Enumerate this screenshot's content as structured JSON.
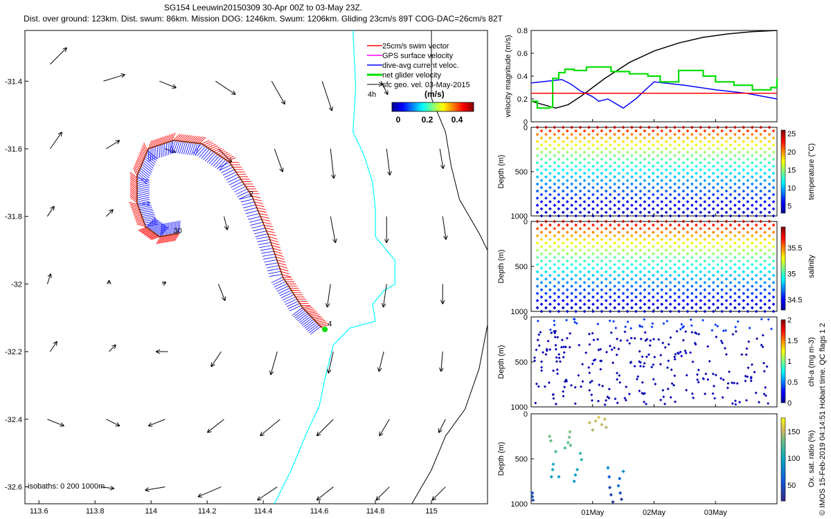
{
  "header": {
    "title": "SG154 Leeuwin20150309 30-Apr 00Z to 03-May 23Z.",
    "subtitle": "Dist. over ground: 123km. Dist. swum: 86km. Mission DOG: 1246km. Swum: 1206km. Gliding 23cm/s 89T COG-DAC=26cm/s 82T"
  },
  "stamp": "© IMOS 15-Feb-2019 04:14:51 Hobart time. QC flags 1  2",
  "colors": {
    "swim": "#ff0000",
    "gps": "#ff00ff",
    "dac": "#0000ff",
    "net": "#00dd00",
    "geo": "#000000",
    "isobath0": "#00ffff",
    "isobath1000": "#000000",
    "track": "#8b2500"
  },
  "chart_data": [
    {
      "type": "map",
      "xlim": [
        113.55,
        115.2
      ],
      "ylim": [
        -32.65,
        -31.25
      ],
      "x_ticks": [
        "113.6",
        "113.8",
        "114",
        "114.2",
        "114.4",
        "114.6",
        "114.8",
        "115"
      ],
      "x_tick_values": [
        113.6,
        113.8,
        114.0,
        114.2,
        114.4,
        114.6,
        114.8,
        115.0
      ],
      "y_ticks": [
        "-31.4",
        "-31.6",
        "-31.8",
        "-32",
        "-32.2",
        "-32.4",
        "-32.6"
      ],
      "y_tick_values": [
        -31.4,
        -31.6,
        -31.8,
        -32.0,
        -32.2,
        -32.4,
        -32.6
      ],
      "legend": {
        "placement": "top-right",
        "entries": [
          "25cm/s swim vector",
          "GPS surface velocity",
          "dive-avg current veloc.",
          "net glider velocity",
          "sfc geo. vel. 03-May-2015"
        ]
      },
      "colorbar": {
        "label": "(m/s)",
        "ticks": [
          "0",
          "0.2",
          "0.4"
        ],
        "range": [
          0,
          0.5
        ]
      },
      "isobath_note": "isobaths: 0   200  1000m",
      "scale_label": "4h",
      "track_labels": [
        {
          "text": "30",
          "lon": 114.08,
          "lat": -31.85
        },
        {
          "text": "2",
          "lon": 114.35,
          "lat": -31.74
        },
        {
          "text": "4",
          "lon": 114.63,
          "lat": -32.125
        }
      ],
      "track": [
        {
          "lon": 114.1,
          "lat": -31.85
        },
        {
          "lon": 114.03,
          "lat": -31.86
        },
        {
          "lon": 113.98,
          "lat": -31.83
        },
        {
          "lon": 113.95,
          "lat": -31.76
        },
        {
          "lon": 113.95,
          "lat": -31.68
        },
        {
          "lon": 113.99,
          "lat": -31.6
        },
        {
          "lon": 114.08,
          "lat": -31.575
        },
        {
          "lon": 114.18,
          "lat": -31.585
        },
        {
          "lon": 114.28,
          "lat": -31.64
        },
        {
          "lon": 114.36,
          "lat": -31.74
        },
        {
          "lon": 114.42,
          "lat": -31.86
        },
        {
          "lon": 114.47,
          "lat": -31.98
        },
        {
          "lon": 114.54,
          "lat": -32.07
        },
        {
          "lon": 114.61,
          "lat": -32.13
        }
      ],
      "geo_arrows": [
        {
          "lon": 113.64,
          "lat": -31.35,
          "u": 0.05,
          "v": 0.05
        },
        {
          "lon": 113.83,
          "lat": -31.4,
          "u": 0.065,
          "v": 0.02
        },
        {
          "lon": 114.03,
          "lat": -31.4,
          "u": 0.05,
          "v": -0.02
        },
        {
          "lon": 114.23,
          "lat": -31.4,
          "u": 0.06,
          "v": -0.04
        },
        {
          "lon": 114.43,
          "lat": -31.4,
          "u": 0.04,
          "v": -0.07
        },
        {
          "lon": 114.61,
          "lat": -31.4,
          "u": 0.03,
          "v": -0.09
        },
        {
          "lon": 114.82,
          "lat": -31.4,
          "u": 0.02,
          "v": -0.04
        },
        {
          "lon": 113.64,
          "lat": -31.6,
          "u": 0.035,
          "v": 0.05
        },
        {
          "lon": 113.84,
          "lat": -31.6,
          "u": 0.04,
          "v": 0.025
        },
        {
          "lon": 114.05,
          "lat": -31.6,
          "u": 0.03,
          "v": -0.01
        },
        {
          "lon": 114.24,
          "lat": -31.6,
          "u": 0.04,
          "v": -0.04
        },
        {
          "lon": 114.44,
          "lat": -31.6,
          "u": 0.025,
          "v": -0.07
        },
        {
          "lon": 114.64,
          "lat": -31.6,
          "u": 0.01,
          "v": -0.09
        },
        {
          "lon": 114.84,
          "lat": -31.6,
          "u": 0.01,
          "v": -0.08
        },
        {
          "lon": 115.03,
          "lat": -31.6,
          "u": 0.01,
          "v": -0.06
        },
        {
          "lon": 113.63,
          "lat": -31.8,
          "u": 0.02,
          "v": 0.03
        },
        {
          "lon": 113.84,
          "lat": -31.8,
          "u": 0.02,
          "v": 0.02
        },
        {
          "lon": 114.26,
          "lat": -31.8,
          "u": 0.01,
          "v": -0.04
        },
        {
          "lon": 114.64,
          "lat": -31.8,
          "u": 0.015,
          "v": -0.08
        },
        {
          "lon": 114.84,
          "lat": -31.8,
          "u": 0.0,
          "v": -0.08
        },
        {
          "lon": 115.04,
          "lat": -31.8,
          "u": 0.01,
          "v": -0.07
        },
        {
          "lon": 113.63,
          "lat": -32.0,
          "u": 0.01,
          "v": 0.03
        },
        {
          "lon": 113.85,
          "lat": -32.0,
          "u": 0.0,
          "v": 0.01
        },
        {
          "lon": 114.04,
          "lat": -32.0,
          "u": 0.01,
          "v": 0.005
        },
        {
          "lon": 114.24,
          "lat": -32.0,
          "u": 0.02,
          "v": -0.05
        },
        {
          "lon": 114.64,
          "lat": -32.0,
          "u": -0.01,
          "v": -0.07
        },
        {
          "lon": 114.84,
          "lat": -32.0,
          "u": -0.01,
          "v": -0.07
        },
        {
          "lon": 115.04,
          "lat": -32.0,
          "u": 0.0,
          "v": -0.06
        },
        {
          "lon": 113.64,
          "lat": -32.2,
          "u": 0.02,
          "v": 0.03
        },
        {
          "lon": 113.85,
          "lat": -32.2,
          "u": 0.02,
          "v": 0.02
        },
        {
          "lon": 114.06,
          "lat": -32.2,
          "u": -0.035,
          "v": 0.0
        },
        {
          "lon": 114.25,
          "lat": -32.2,
          "u": -0.03,
          "v": -0.045
        },
        {
          "lon": 114.45,
          "lat": -32.2,
          "u": -0.02,
          "v": -0.07
        },
        {
          "lon": 114.65,
          "lat": -32.2,
          "u": -0.015,
          "v": -0.065
        },
        {
          "lon": 114.83,
          "lat": -32.2,
          "u": -0.015,
          "v": -0.06
        },
        {
          "lon": 115.04,
          "lat": -32.2,
          "u": -0.005,
          "v": -0.06
        },
        {
          "lon": 113.63,
          "lat": -32.4,
          "u": 0.05,
          "v": -0.02
        },
        {
          "lon": 113.84,
          "lat": -32.4,
          "u": 0.04,
          "v": -0.02
        },
        {
          "lon": 114.05,
          "lat": -32.4,
          "u": -0.05,
          "v": -0.02
        },
        {
          "lon": 114.26,
          "lat": -32.4,
          "u": -0.05,
          "v": -0.04
        },
        {
          "lon": 114.46,
          "lat": -32.4,
          "u": -0.06,
          "v": -0.05
        },
        {
          "lon": 114.65,
          "lat": -32.4,
          "u": -0.05,
          "v": -0.05
        },
        {
          "lon": 114.85,
          "lat": -32.4,
          "u": -0.03,
          "v": -0.05
        },
        {
          "lon": 115.05,
          "lat": -32.4,
          "u": -0.02,
          "v": -0.04
        },
        {
          "lon": 113.82,
          "lat": -32.6,
          "u": 0.04,
          "v": -0.005
        },
        {
          "lon": 114.05,
          "lat": -32.6,
          "u": -0.06,
          "v": -0.01
        },
        {
          "lon": 114.25,
          "lat": -32.6,
          "u": -0.07,
          "v": -0.03
        },
        {
          "lon": 114.45,
          "lat": -32.6,
          "u": -0.06,
          "v": -0.04
        },
        {
          "lon": 114.65,
          "lat": -32.6,
          "u": -0.05,
          "v": -0.04
        },
        {
          "lon": 114.85,
          "lat": -32.6,
          "u": -0.04,
          "v": -0.04
        },
        {
          "lon": 115.05,
          "lat": -32.6,
          "u": -0.04,
          "v": -0.04
        }
      ],
      "isobath_200": [
        {
          "lon": 114.72,
          "lat": -31.25
        },
        {
          "lon": 114.73,
          "lat": -31.42
        },
        {
          "lon": 114.72,
          "lat": -31.55
        },
        {
          "lon": 114.76,
          "lat": -31.62
        },
        {
          "lon": 114.79,
          "lat": -31.7
        },
        {
          "lon": 114.8,
          "lat": -31.78
        },
        {
          "lon": 114.8,
          "lat": -31.86
        },
        {
          "lon": 114.87,
          "lat": -31.93
        },
        {
          "lon": 114.87,
          "lat": -32.0
        },
        {
          "lon": 114.83,
          "lat": -32.02
        },
        {
          "lon": 114.79,
          "lat": -32.06
        },
        {
          "lon": 114.8,
          "lat": -32.11
        },
        {
          "lon": 114.71,
          "lat": -32.13
        },
        {
          "lon": 114.65,
          "lat": -32.18
        },
        {
          "lon": 114.62,
          "lat": -32.28
        },
        {
          "lon": 114.6,
          "lat": -32.36
        },
        {
          "lon": 114.55,
          "lat": -32.45
        },
        {
          "lon": 114.5,
          "lat": -32.55
        },
        {
          "lon": 114.44,
          "lat": -32.65
        }
      ],
      "isobath_1000": [
        {
          "lon": 115.0,
          "lat": -31.25
        },
        {
          "lon": 115.0,
          "lat": -31.45
        },
        {
          "lon": 115.05,
          "lat": -31.55
        },
        {
          "lon": 115.07,
          "lat": -31.65
        },
        {
          "lon": 115.1,
          "lat": -31.75
        },
        {
          "lon": 115.17,
          "lat": -31.85
        },
        {
          "lon": 115.2,
          "lat": -31.9
        }
      ],
      "isobath_1000_b": [
        {
          "lon": 115.2,
          "lat": -32.12
        },
        {
          "lon": 115.17,
          "lat": -32.25
        },
        {
          "lon": 115.12,
          "lat": -32.37
        },
        {
          "lon": 115.05,
          "lat": -32.45
        },
        {
          "lon": 115.0,
          "lat": -32.55
        },
        {
          "lon": 114.93,
          "lat": -32.65
        }
      ]
    },
    {
      "type": "line",
      "ylabel": "velocity magnitude (m/s)",
      "ylim": [
        0,
        0.8
      ],
      "y_ticks": [
        "0",
        "0.2",
        "0.4",
        "0.6",
        "0.8"
      ],
      "xlim": [
        0,
        4
      ],
      "series": [
        {
          "color": "#000000",
          "x": [
            0,
            0.2,
            0.4,
            0.6,
            0.8,
            1.0,
            1.2,
            1.4,
            1.6,
            2.0,
            2.4,
            2.8,
            3.2,
            3.6,
            4.0
          ],
          "y": [
            0.18,
            0.15,
            0.12,
            0.15,
            0.22,
            0.3,
            0.38,
            0.45,
            0.52,
            0.62,
            0.69,
            0.74,
            0.77,
            0.79,
            0.8
          ]
        },
        {
          "color": "#0000ff",
          "x": [
            0,
            0.5,
            0.65,
            0.8,
            1.0,
            1.1,
            1.25,
            1.5,
            1.7,
            2.0,
            2.5,
            3.0,
            3.5,
            4.0
          ],
          "y": [
            0.34,
            0.37,
            0.33,
            0.27,
            0.22,
            0.18,
            0.2,
            0.12,
            0.2,
            0.35,
            0.32,
            0.28,
            0.25,
            0.2
          ]
        },
        {
          "color": "#00dd00",
          "x": [
            0,
            0.1,
            0.3,
            0.35,
            0.45,
            0.55,
            0.7,
            0.9,
            1.1,
            1.3,
            1.6,
            1.9,
            2.1,
            2.4,
            2.8,
            3.0,
            3.3,
            3.6,
            3.9,
            4.0
          ],
          "y": [
            0.18,
            0.12,
            0.13,
            0.38,
            0.43,
            0.46,
            0.45,
            0.48,
            0.48,
            0.44,
            0.42,
            0.4,
            0.35,
            0.45,
            0.4,
            0.35,
            0.32,
            0.28,
            0.3,
            0.38
          ]
        },
        {
          "color": "#ff0000",
          "x": [
            0,
            4
          ],
          "y": [
            0.25,
            0.25
          ]
        }
      ]
    },
    {
      "type": "scatter",
      "ylabel": "Depth (m)",
      "ylim": [
        1000,
        0
      ],
      "y_ticks": [
        "0",
        "500",
        "1000"
      ],
      "colorbar": {
        "label": "temperature (°C)",
        "ticks": [
          "5",
          "10",
          "15",
          "20",
          "25"
        ],
        "range": [
          3,
          26
        ]
      },
      "profile": "temperature",
      "dives": 28
    },
    {
      "type": "scatter",
      "ylabel": "Depth (m)",
      "ylim": [
        1000,
        0
      ],
      "y_ticks": [
        "0",
        "500",
        "1000"
      ],
      "colorbar": {
        "label": "salinity",
        "ticks": [
          "34.5",
          "35",
          "35.5"
        ],
        "range": [
          34.3,
          35.9
        ]
      },
      "profile": "salinity",
      "dives": 28
    },
    {
      "type": "scatter",
      "ylabel": "Depth (m)",
      "ylim": [
        1000,
        0
      ],
      "y_ticks": [
        "0",
        "500",
        "1000"
      ],
      "colorbar": {
        "label": "chl-a (mg m-3)",
        "ticks": [
          "0",
          "0.5",
          "1",
          "1.5",
          "2"
        ],
        "range": [
          0,
          2
        ]
      },
      "profile": "chl",
      "dives": 28
    },
    {
      "type": "scatter",
      "ylabel": "Depth (m)",
      "ylim": [
        1000,
        0
      ],
      "y_ticks": [
        "0",
        "500",
        "1000"
      ],
      "colorbar": {
        "label": "Ox. sat. ratio (%)",
        "ticks": [
          "50",
          "100",
          "150"
        ],
        "range": [
          20,
          175
        ]
      },
      "profile": "oxygen",
      "x_ticks": [
        "01May",
        "02May",
        "03May"
      ],
      "x_tick_values": [
        1,
        2,
        3
      ],
      "xlim": [
        0,
        4
      ],
      "points": [
        {
          "x": 0.02,
          "y": 920,
          "c": 40
        },
        {
          "x": 0.03,
          "y": 960,
          "c": 40
        },
        {
          "x": 0.02,
          "y": 880,
          "c": 45
        },
        {
          "x": 0.3,
          "y": 250,
          "c": 120
        },
        {
          "x": 0.32,
          "y": 300,
          "c": 115
        },
        {
          "x": 0.33,
          "y": 700,
          "c": 80
        },
        {
          "x": 0.35,
          "y": 620,
          "c": 85
        },
        {
          "x": 0.36,
          "y": 560,
          "c": 90
        },
        {
          "x": 0.4,
          "y": 420,
          "c": 105
        },
        {
          "x": 0.45,
          "y": 700,
          "c": 80
        },
        {
          "x": 0.55,
          "y": 380,
          "c": 110
        },
        {
          "x": 0.6,
          "y": 320,
          "c": 115
        },
        {
          "x": 0.62,
          "y": 260,
          "c": 120
        },
        {
          "x": 0.63,
          "y": 200,
          "c": 125
        },
        {
          "x": 0.64,
          "y": 350,
          "c": 112
        },
        {
          "x": 0.7,
          "y": 750,
          "c": 75
        },
        {
          "x": 0.72,
          "y": 680,
          "c": 80
        },
        {
          "x": 0.75,
          "y": 620,
          "c": 85
        },
        {
          "x": 0.8,
          "y": 440,
          "c": 100
        },
        {
          "x": 0.82,
          "y": 510,
          "c": 95
        },
        {
          "x": 0.95,
          "y": 100,
          "c": 140
        },
        {
          "x": 1.0,
          "y": 180,
          "c": 135
        },
        {
          "x": 1.05,
          "y": 80,
          "c": 145
        },
        {
          "x": 1.1,
          "y": 40,
          "c": 150
        },
        {
          "x": 1.15,
          "y": 120,
          "c": 140
        },
        {
          "x": 1.2,
          "y": 60,
          "c": 145
        },
        {
          "x": 1.22,
          "y": 150,
          "c": 135
        },
        {
          "x": 1.25,
          "y": 600,
          "c": 70
        },
        {
          "x": 1.27,
          "y": 700,
          "c": 50
        },
        {
          "x": 1.28,
          "y": 820,
          "c": 40
        },
        {
          "x": 1.3,
          "y": 900,
          "c": 35
        },
        {
          "x": 1.33,
          "y": 980,
          "c": 30
        },
        {
          "x": 1.42,
          "y": 800,
          "c": 60
        },
        {
          "x": 1.44,
          "y": 720,
          "c": 55
        },
        {
          "x": 1.45,
          "y": 880,
          "c": 40
        },
        {
          "x": 1.47,
          "y": 950,
          "c": 35
        },
        {
          "x": 1.5,
          "y": 640,
          "c": 70
        }
      ]
    }
  ]
}
